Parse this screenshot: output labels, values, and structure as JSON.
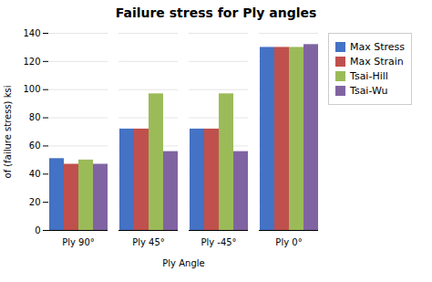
{
  "chart_data": {
    "type": "bar",
    "title": "Failure stress for Ply angles",
    "xlabel": "Ply Angle",
    "ylabel": "of (failure stress) ksi",
    "categories": [
      "Ply 90°",
      "Ply 45°",
      "Ply -45°",
      "Ply 0°"
    ],
    "series": [
      {
        "name": "Max Stress",
        "color": "#4472C4",
        "values": [
          51,
          72,
          72,
          130
        ]
      },
      {
        "name": "Max Strain",
        "color": "#C0504D",
        "values": [
          47,
          72,
          72,
          130
        ]
      },
      {
        "name": "Tsai-Hill",
        "color": "#9BBB59",
        "values": [
          50,
          97,
          97,
          130
        ]
      },
      {
        "name": "Tsai-Wu",
        "color": "#8064A2",
        "values": [
          47,
          56,
          56,
          132
        ]
      }
    ],
    "ylim": [
      0,
      140
    ],
    "yticks": [
      0,
      20,
      40,
      60,
      80,
      100,
      120,
      140
    ],
    "grid": true,
    "legend": "right"
  }
}
